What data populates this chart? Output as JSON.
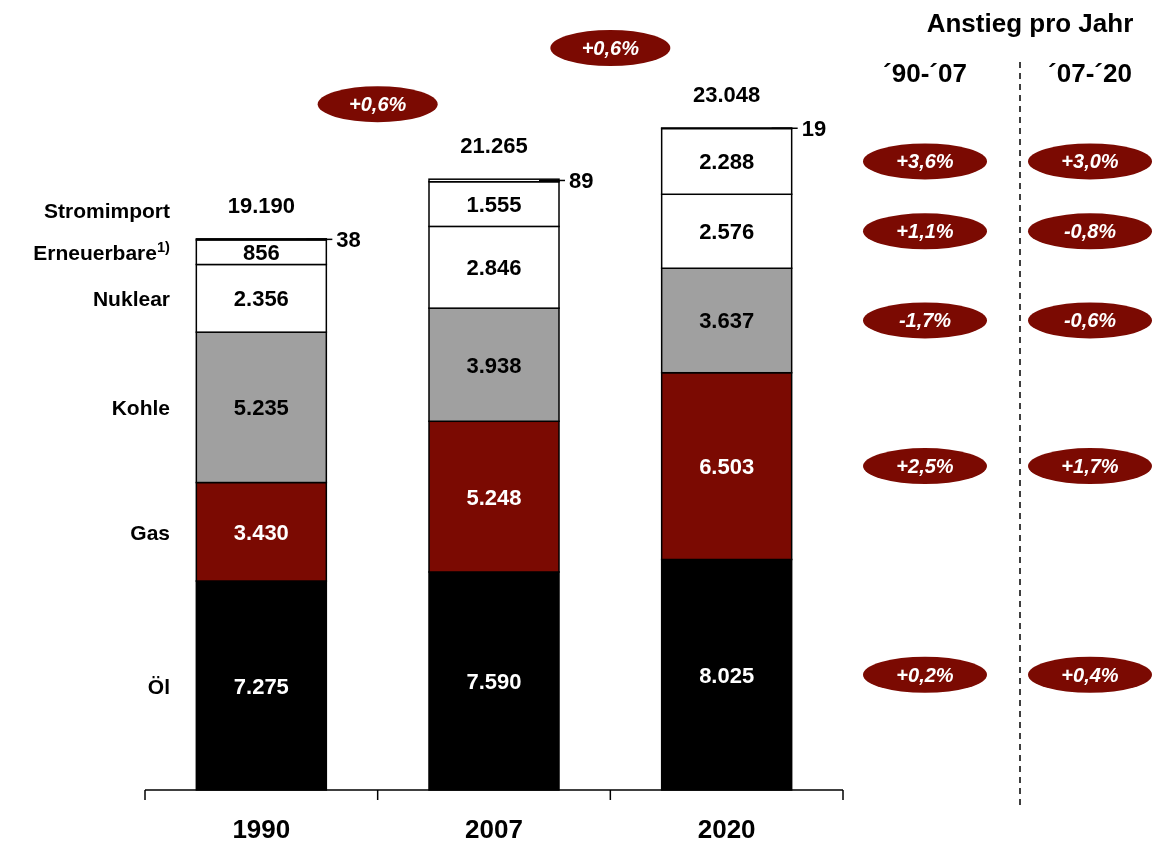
{
  "chart_data": {
    "type": "bar",
    "stacked": true,
    "categories": [
      "1990",
      "2007",
      "2020"
    ],
    "series": [
      {
        "name": "Öl",
        "color": "#000000",
        "values": [
          7275,
          7590,
          8025
        ],
        "value_labels": [
          "7.275",
          "7.590",
          "8.025"
        ]
      },
      {
        "name": "Gas",
        "color": "#7b0a02",
        "values": [
          3430,
          5248,
          6503
        ],
        "value_labels": [
          "3.430",
          "5.248",
          "6.503"
        ]
      },
      {
        "name": "Kohle",
        "color": "#a0a0a0",
        "values": [
          5235,
          3938,
          3637
        ],
        "value_labels": [
          "5.235",
          "3.938",
          "3.637"
        ]
      },
      {
        "name": "Nuklear",
        "color": "#ffffff",
        "values": [
          2356,
          2846,
          2576
        ],
        "value_labels": [
          "2.356",
          "2.846",
          "2.576"
        ]
      },
      {
        "name": "Erneuerbare$^{1)}$",
        "color": "#ffffff",
        "values": [
          856,
          1555,
          2288
        ],
        "value_labels": [
          "856",
          "1.555",
          "2.288"
        ]
      },
      {
        "name": "Stromimport",
        "color": "#ffffff",
        "values": [
          38,
          89,
          19
        ],
        "value_labels": [
          "38",
          "89",
          "19"
        ]
      }
    ],
    "totals": [
      "19.190",
      "21.265",
      "23.048"
    ],
    "annotations": [
      "+0,6%",
      "+0,6%",
      "Anstieg pro Jahr",
      "´90-´07",
      "´07-´20",
      "+3,6%",
      "+3,0%",
      "+1,1%",
      "-0,8%",
      "-1,7%",
      "-0,6%",
      "+2,5%",
      "+1,7%",
      "+0,2%",
      "+0,4%"
    ]
  }
}
